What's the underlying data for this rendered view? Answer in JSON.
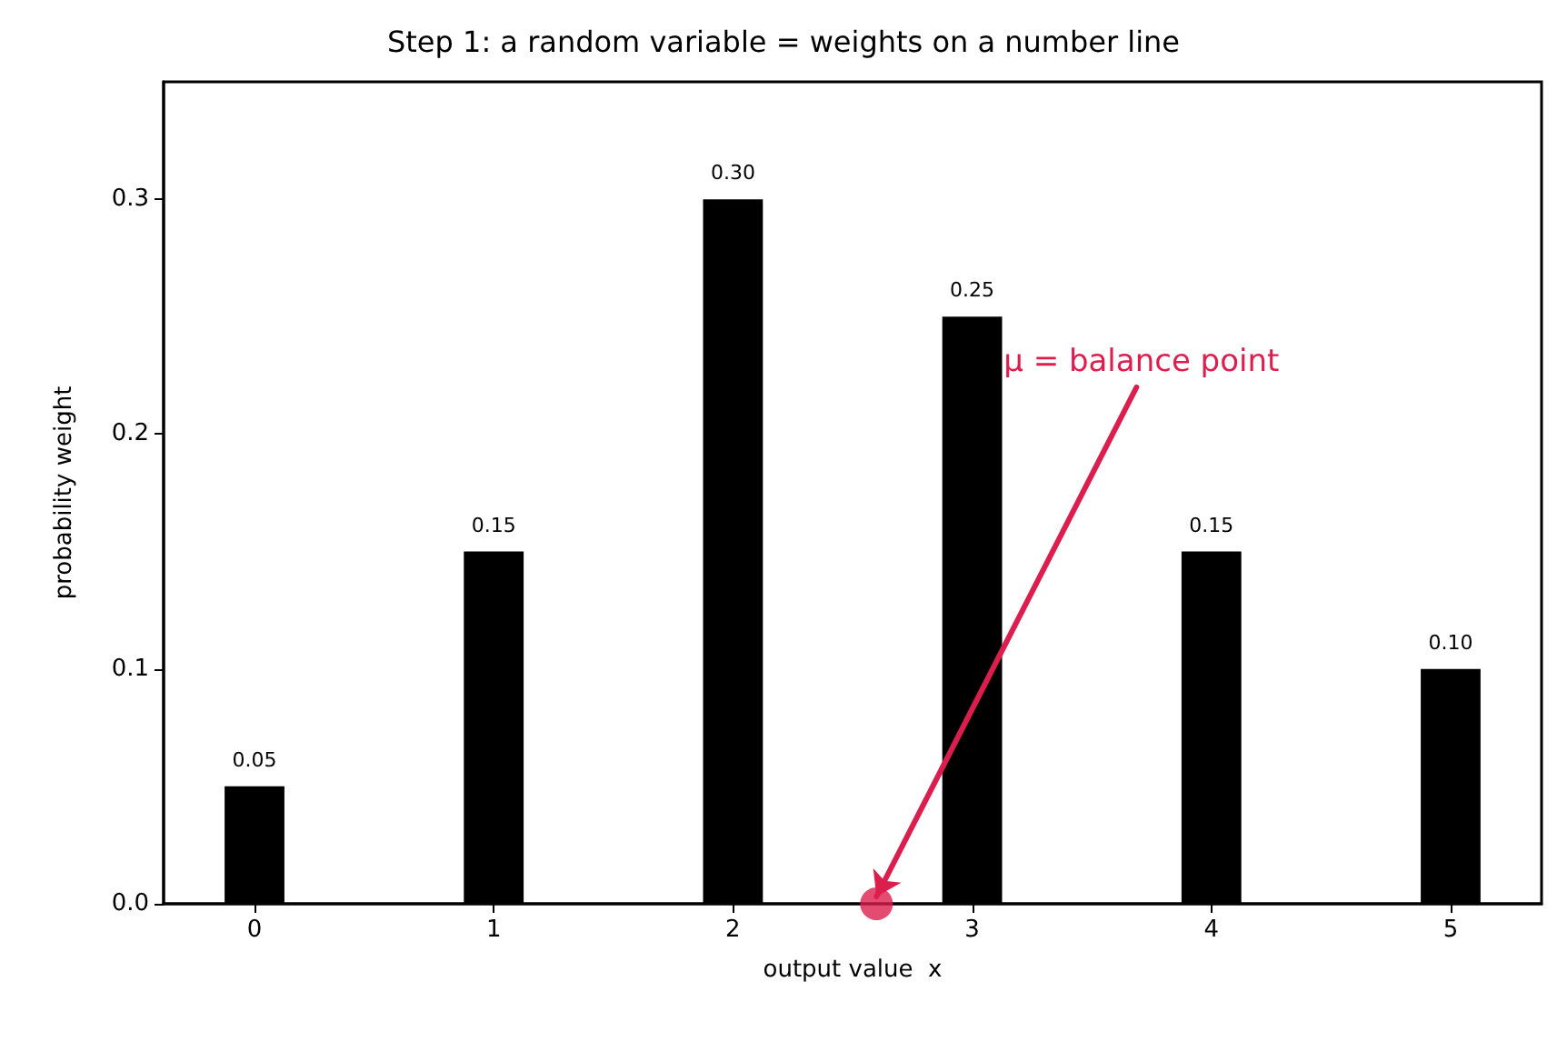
{
  "chart_data": {
    "type": "bar",
    "title": "Step 1: a random variable = weights on a number line",
    "xlabel": "output value  x",
    "ylabel": "probability weight",
    "x": [
      0,
      1,
      2,
      3,
      4,
      5
    ],
    "series": [
      {
        "color": "#000000",
        "values": [
          0.05,
          0.15,
          0.3,
          0.25,
          0.15,
          0.1
        ],
        "value_labels": [
          "0.05",
          "0.15",
          "0.30",
          "0.25",
          "0.15",
          "0.10"
        ]
      },
      {
        "type": "scatter",
        "color": "#dc1e4e",
        "x": [
          2.6
        ],
        "values": [
          0
        ]
      }
    ],
    "xlim": [
      -0.38,
      5.38
    ],
    "xticks": [
      0,
      1,
      2,
      3,
      4,
      5
    ],
    "ylim": [
      0,
      0.35
    ],
    "yticks": [
      {
        "value": 0,
        "label": "0.0"
      },
      {
        "value": 0.1,
        "label": "0.1"
      },
      {
        "value": 0.2,
        "label": "0.2"
      },
      {
        "value": 0.3,
        "label": "0.3"
      }
    ],
    "annotations": [
      {
        "text": "μ = balance point",
        "x": 2.6,
        "y": 0
      }
    ]
  }
}
